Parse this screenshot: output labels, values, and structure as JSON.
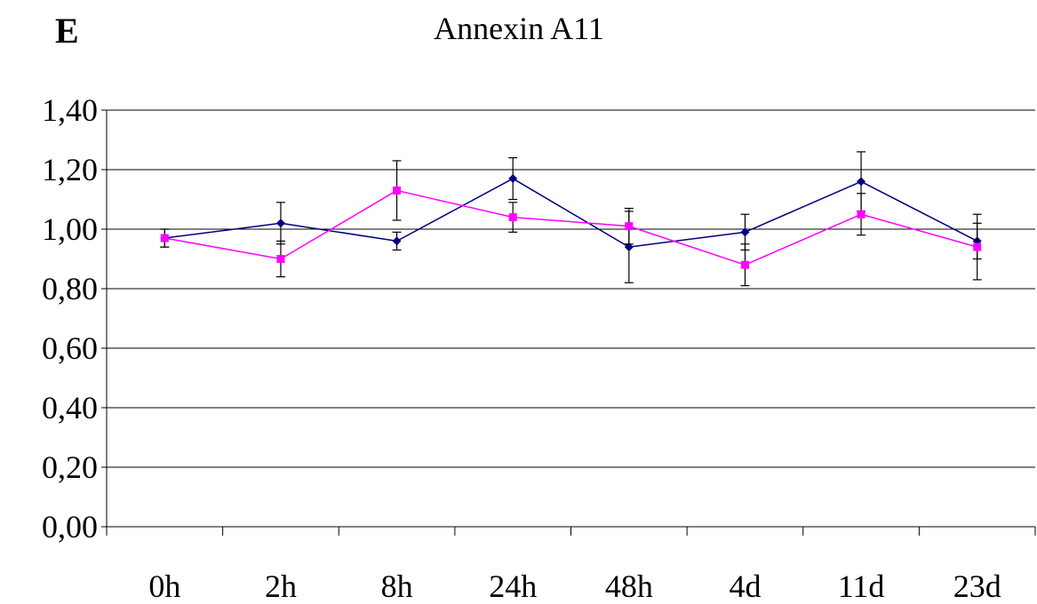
{
  "panel_label": "E",
  "chart_data": {
    "type": "line",
    "title": "Annexin A11",
    "xlabel": "",
    "ylabel": "",
    "categories": [
      "0h",
      "2h",
      "8h",
      "24h",
      "48h",
      "4d",
      "11d",
      "23d"
    ],
    "ylim": [
      0,
      1.4
    ],
    "yticks": [
      "0,00",
      "0,20",
      "0,40",
      "0,60",
      "0,80",
      "1,00",
      "1,20",
      "1,40"
    ],
    "grid": true,
    "series": [
      {
        "color": "#000080",
        "marker": "diamond",
        "values": [
          0.97,
          1.02,
          0.96,
          1.17,
          0.94,
          0.99,
          1.16,
          0.96
        ],
        "errors": [
          0.03,
          0.07,
          0.03,
          0.07,
          0.12,
          0.06,
          0.1,
          0.06
        ]
      },
      {
        "color": "#ff00ff",
        "marker": "square",
        "values": [
          0.97,
          0.9,
          1.13,
          1.04,
          1.01,
          0.88,
          1.05,
          0.94
        ],
        "errors": [
          0.03,
          0.06,
          0.1,
          0.05,
          0.06,
          0.07,
          0.07,
          0.11
        ]
      }
    ]
  }
}
